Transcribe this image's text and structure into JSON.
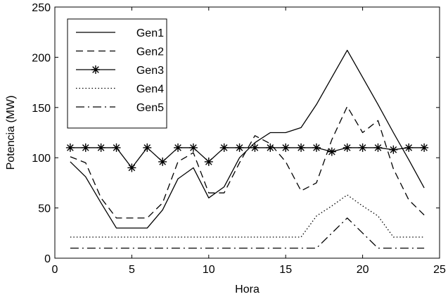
{
  "chart_data": {
    "type": "line",
    "xlabel": "Hora",
    "ylabel": "Potencia (MW)",
    "xlim": [
      0,
      25
    ],
    "ylim": [
      0,
      250
    ],
    "xticks": [
      0,
      5,
      10,
      15,
      20,
      25
    ],
    "yticks": [
      0,
      50,
      100,
      150,
      200,
      250
    ],
    "grid": false,
    "legend_position": "top-left",
    "x": [
      1,
      2,
      3,
      4,
      5,
      6,
      7,
      8,
      9,
      10,
      11,
      12,
      13,
      14,
      15,
      16,
      17,
      18,
      19,
      20,
      21,
      22,
      23,
      24
    ],
    "series": [
      {
        "name": "Gen1",
        "style": "solid",
        "marker": "none",
        "values": [
          96,
          81,
          55,
          30,
          30,
          30,
          48,
          79,
          90,
          60,
          71,
          100,
          115,
          125,
          125,
          130,
          153,
          180,
          207,
          180,
          153,
          125,
          98,
          70
        ]
      },
      {
        "name": "Gen2",
        "style": "dashed",
        "marker": "none",
        "values": [
          101,
          95,
          60,
          40,
          40,
          40,
          55,
          96,
          105,
          65,
          65,
          95,
          122,
          114,
          96,
          67,
          75,
          118,
          151,
          125,
          137,
          89,
          58,
          43
        ]
      },
      {
        "name": "Gen3",
        "style": "solid",
        "marker": "asterisk",
        "values": [
          110,
          110,
          110,
          110,
          90,
          110,
          96,
          110,
          110,
          96,
          110,
          110,
          110,
          110,
          110,
          110,
          110,
          106,
          110,
          110,
          110,
          108,
          110,
          110
        ]
      },
      {
        "name": "Gen4",
        "style": "dotted",
        "marker": "none",
        "values": [
          21,
          21,
          21,
          21,
          21,
          21,
          21,
          21,
          21,
          21,
          21,
          21,
          21,
          21,
          21,
          21,
          42,
          52,
          63,
          52,
          42,
          21,
          21,
          21
        ]
      },
      {
        "name": "Gen5",
        "style": "dashdot",
        "marker": "none",
        "values": [
          10,
          10,
          10,
          10,
          10,
          10,
          10,
          10,
          10,
          10,
          10,
          10,
          10,
          10,
          10,
          10,
          10,
          25,
          40,
          25,
          10,
          10,
          10,
          10
        ]
      }
    ]
  }
}
